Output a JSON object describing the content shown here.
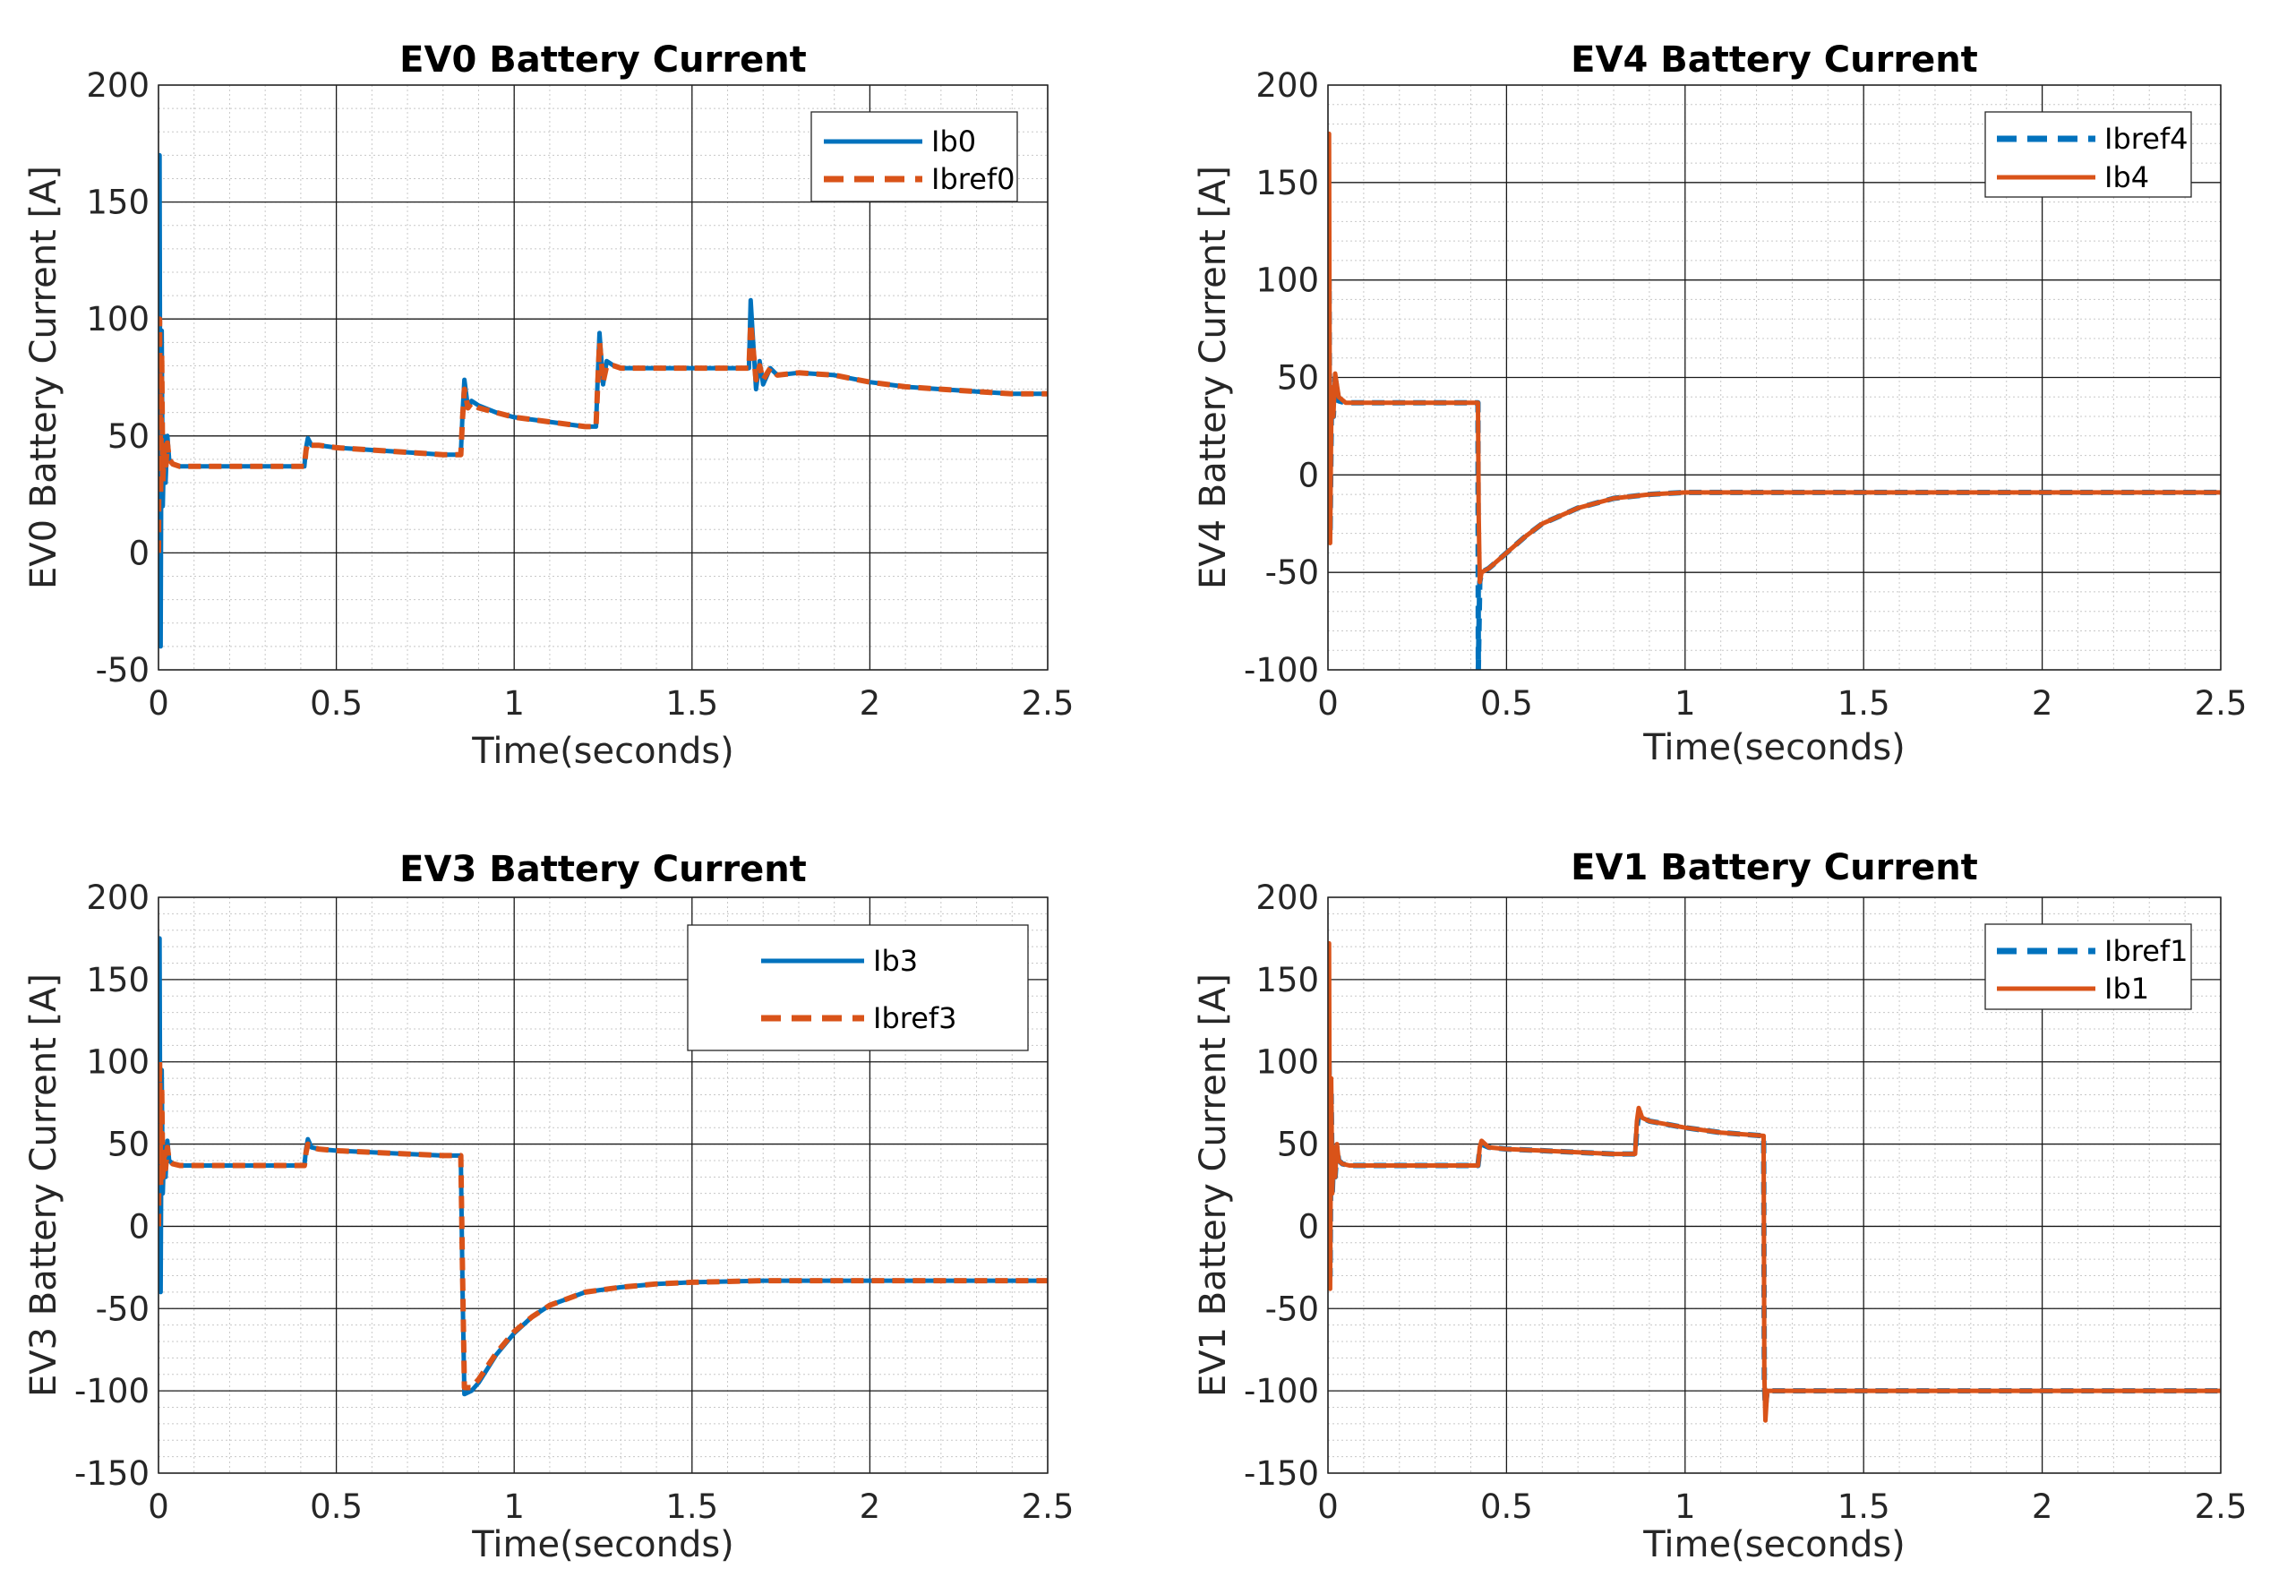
{
  "figure": {
    "colors": {
      "blue": "#0072BD",
      "orange": "#D95319",
      "grid_major": "#1a1a1a",
      "grid_minor": "#c8c8c8"
    }
  },
  "chart_data": [
    {
      "id": "ev0",
      "type": "line",
      "title": "EV0 Battery Current",
      "xlabel": "Time(seconds)",
      "ylabel": "EV0 Battery Current [A]",
      "xlim": [
        0,
        2.5
      ],
      "ylim": [
        -50,
        200
      ],
      "xticks": [
        0,
        0.5,
        1,
        1.5,
        2,
        2.5
      ],
      "yticks": [
        -50,
        0,
        50,
        100,
        150,
        200
      ],
      "xtick_labels": [
        "0",
        "0.5",
        "1",
        "1.5",
        "2",
        "2.5"
      ],
      "ytick_labels": [
        "-50",
        "0",
        "50",
        "100",
        "150",
        "200"
      ],
      "legend": {
        "position": "top-right",
        "entries": [
          "Ib0",
          "Ibref0"
        ]
      },
      "series": [
        {
          "name": "Ib0",
          "color": "#0072BD",
          "style": "solid",
          "x": [
            0,
            0.003,
            0.006,
            0.009,
            0.012,
            0.016,
            0.02,
            0.025,
            0.03,
            0.04,
            0.06,
            0.1,
            0.2,
            0.3,
            0.41,
            0.415,
            0.42,
            0.43,
            0.45,
            0.5,
            0.6,
            0.7,
            0.8,
            0.85,
            0.855,
            0.86,
            0.87,
            0.88,
            0.9,
            0.95,
            1.0,
            1.1,
            1.2,
            1.23,
            1.235,
            1.24,
            1.25,
            1.26,
            1.28,
            1.3,
            1.4,
            1.5,
            1.6,
            1.66,
            1.665,
            1.67,
            1.68,
            1.69,
            1.7,
            1.72,
            1.74,
            1.8,
            1.9,
            2.0,
            2.1,
            2.2,
            2.3,
            2.4,
            2.5
          ],
          "y": [
            0,
            170,
            -40,
            95,
            20,
            50,
            30,
            50,
            40,
            38,
            37,
            37,
            37,
            37,
            37,
            45,
            49,
            46,
            46,
            45,
            44,
            43,
            42,
            42,
            60,
            74,
            62,
            65,
            63,
            60,
            58,
            56,
            54,
            54,
            75,
            94,
            72,
            82,
            80,
            79,
            79,
            79,
            79,
            79,
            108,
            95,
            70,
            82,
            72,
            79,
            76,
            77,
            76,
            73,
            71,
            70,
            69,
            68,
            68
          ]
        },
        {
          "name": "Ibref0",
          "color": "#D95319",
          "style": "dashed",
          "x": [
            0,
            0.003,
            0.006,
            0.009,
            0.012,
            0.016,
            0.02,
            0.025,
            0.03,
            0.04,
            0.06,
            0.1,
            0.2,
            0.3,
            0.41,
            0.415,
            0.42,
            0.43,
            0.45,
            0.5,
            0.6,
            0.7,
            0.8,
            0.85,
            0.855,
            0.86,
            0.87,
            0.88,
            0.9,
            0.95,
            1.0,
            1.1,
            1.2,
            1.23,
            1.235,
            1.24,
            1.25,
            1.26,
            1.28,
            1.3,
            1.4,
            1.5,
            1.6,
            1.66,
            1.665,
            1.67,
            1.68,
            1.69,
            1.7,
            1.72,
            1.74,
            1.8,
            1.9,
            2.0,
            2.1,
            2.2,
            2.3,
            2.4,
            2.5
          ],
          "y": [
            0,
            100,
            25,
            85,
            30,
            45,
            35,
            47,
            40,
            38,
            37,
            37,
            37,
            37,
            37,
            44,
            47,
            46,
            46,
            45,
            44,
            43,
            42,
            42,
            58,
            70,
            62,
            64,
            62,
            60,
            58,
            56,
            54,
            54,
            72,
            90,
            73,
            80,
            80,
            79,
            79,
            79,
            79,
            79,
            98,
            90,
            74,
            80,
            74,
            79,
            76,
            77,
            76,
            73,
            71,
            70,
            69,
            68,
            68
          ]
        }
      ]
    },
    {
      "id": "ev4",
      "type": "line",
      "title": "EV4 Battery Current",
      "xlabel": "Time(seconds)",
      "ylabel": "EV4 Battery Current [A]",
      "xlim": [
        0,
        2.5
      ],
      "ylim": [
        -100,
        200
      ],
      "xticks": [
        0,
        0.5,
        1,
        1.5,
        2,
        2.5
      ],
      "yticks": [
        -100,
        -50,
        0,
        50,
        100,
        150,
        200
      ],
      "xtick_labels": [
        "0",
        "0.5",
        "1",
        "1.5",
        "2",
        "2.5"
      ],
      "ytick_labels": [
        "-100",
        "-50",
        "0",
        "50",
        "100",
        "150",
        "200"
      ],
      "legend": {
        "position": "top-right",
        "entries": [
          "Ibref4",
          "Ib4"
        ]
      },
      "series": [
        {
          "name": "Ibref4",
          "color": "#0072BD",
          "style": "dashed",
          "x": [
            0,
            0.003,
            0.006,
            0.01,
            0.015,
            0.02,
            0.03,
            0.05,
            0.1,
            0.2,
            0.3,
            0.42,
            0.421,
            0.425,
            0.43,
            0.45,
            0.5,
            0.55,
            0.6,
            0.7,
            0.8,
            0.9,
            1.0,
            1.2,
            1.5,
            2.0,
            2.5
          ],
          "y": [
            0,
            100,
            -30,
            40,
            30,
            50,
            38,
            37,
            37,
            37,
            37,
            37,
            -100,
            -55,
            -50,
            -48,
            -40,
            -32,
            -25,
            -17,
            -12,
            -10,
            -9,
            -9,
            -9,
            -9,
            -9
          ]
        },
        {
          "name": "Ib4",
          "color": "#D95319",
          "style": "solid",
          "x": [
            0,
            0.003,
            0.006,
            0.01,
            0.015,
            0.02,
            0.03,
            0.05,
            0.1,
            0.2,
            0.3,
            0.42,
            0.422,
            0.425,
            0.43,
            0.45,
            0.5,
            0.55,
            0.6,
            0.7,
            0.8,
            0.9,
            1.0,
            1.2,
            1.5,
            2.0,
            2.5
          ],
          "y": [
            0,
            175,
            -35,
            45,
            30,
            52,
            40,
            37,
            37,
            37,
            37,
            37,
            -20,
            -55,
            -50,
            -48,
            -40,
            -32,
            -25,
            -17,
            -12,
            -10,
            -9,
            -9,
            -9,
            -9,
            -9
          ]
        }
      ]
    },
    {
      "id": "ev3",
      "type": "line",
      "title": "EV3 Battery Current",
      "xlabel": "Time(seconds)",
      "ylabel": "EV3 Battery Current [A]",
      "xlim": [
        0,
        2.5
      ],
      "ylim": [
        -150,
        200
      ],
      "xticks": [
        0,
        0.5,
        1,
        1.5,
        2,
        2.5
      ],
      "yticks": [
        -150,
        -100,
        -50,
        0,
        50,
        100,
        150,
        200
      ],
      "xtick_labels": [
        "0",
        "0.5",
        "1",
        "1.5",
        "2",
        "2.5"
      ],
      "ytick_labels": [
        "-150",
        "-100",
        "-50",
        "0",
        "50",
        "100",
        "150",
        "200"
      ],
      "legend": {
        "position": "top-right",
        "entries": [
          "Ib3",
          "Ibref3"
        ]
      },
      "series": [
        {
          "name": "Ib3",
          "color": "#0072BD",
          "style": "solid",
          "x": [
            0,
            0.003,
            0.006,
            0.009,
            0.012,
            0.016,
            0.02,
            0.025,
            0.03,
            0.04,
            0.06,
            0.1,
            0.2,
            0.3,
            0.41,
            0.415,
            0.42,
            0.43,
            0.45,
            0.5,
            0.6,
            0.7,
            0.8,
            0.85,
            0.855,
            0.86,
            0.88,
            0.9,
            0.95,
            1.0,
            1.05,
            1.1,
            1.2,
            1.3,
            1.4,
            1.5,
            1.7,
            2.0,
            2.5
          ],
          "y": [
            0,
            175,
            -40,
            95,
            20,
            50,
            30,
            52,
            40,
            38,
            37,
            37,
            37,
            37,
            37,
            47,
            53,
            48,
            47,
            46,
            45,
            44,
            43,
            43,
            -40,
            -102,
            -100,
            -95,
            -78,
            -65,
            -55,
            -48,
            -40,
            -37,
            -35,
            -34,
            -33,
            -33,
            -33
          ]
        },
        {
          "name": "Ibref3",
          "color": "#D95319",
          "style": "dashed",
          "x": [
            0,
            0.003,
            0.006,
            0.009,
            0.012,
            0.016,
            0.02,
            0.025,
            0.03,
            0.04,
            0.06,
            0.1,
            0.2,
            0.3,
            0.41,
            0.415,
            0.42,
            0.43,
            0.45,
            0.5,
            0.6,
            0.7,
            0.8,
            0.85,
            0.855,
            0.86,
            0.88,
            0.9,
            0.95,
            1.0,
            1.05,
            1.1,
            1.2,
            1.3,
            1.4,
            1.5,
            1.7,
            2.0,
            2.5
          ],
          "y": [
            0,
            100,
            25,
            85,
            30,
            45,
            35,
            48,
            40,
            38,
            37,
            37,
            37,
            37,
            37,
            45,
            50,
            48,
            47,
            46,
            45,
            44,
            43,
            43,
            -30,
            -98,
            -98,
            -93,
            -77,
            -64,
            -55,
            -48,
            -40,
            -37,
            -35,
            -34,
            -33,
            -33,
            -33
          ]
        }
      ]
    },
    {
      "id": "ev1",
      "type": "line",
      "title": "EV1 Battery Current",
      "xlabel": "Time(seconds)",
      "ylabel": "EV1 Battery Current [A]",
      "xlim": [
        0,
        2.5
      ],
      "ylim": [
        -150,
        200
      ],
      "xticks": [
        0,
        0.5,
        1,
        1.5,
        2,
        2.5
      ],
      "yticks": [
        -150,
        -100,
        -50,
        0,
        50,
        100,
        150,
        200
      ],
      "xtick_labels": [
        "0",
        "0.5",
        "1",
        "1.5",
        "2",
        "2.5"
      ],
      "ytick_labels": [
        "-150",
        "-100",
        "-50",
        "0",
        "50",
        "100",
        "150",
        "200"
      ],
      "legend": {
        "position": "top-right",
        "entries": [
          "Ibref1",
          "Ib1"
        ]
      },
      "series": [
        {
          "name": "Ibref1",
          "color": "#0072BD",
          "style": "dashed",
          "x": [
            0,
            0.003,
            0.006,
            0.009,
            0.012,
            0.016,
            0.02,
            0.025,
            0.03,
            0.04,
            0.06,
            0.1,
            0.2,
            0.3,
            0.42,
            0.425,
            0.43,
            0.45,
            0.5,
            0.6,
            0.7,
            0.8,
            0.86,
            0.865,
            0.87,
            0.88,
            0.9,
            1.0,
            1.1,
            1.22,
            1.222,
            1.225,
            1.23,
            1.3,
            1.5,
            2.0,
            2.5
          ],
          "y": [
            0,
            100,
            -30,
            80,
            20,
            45,
            30,
            48,
            40,
            38,
            37,
            37,
            37,
            37,
            37,
            47,
            50,
            48,
            47,
            46,
            45,
            44,
            44,
            60,
            68,
            66,
            64,
            60,
            57,
            55,
            -95,
            -110,
            -100,
            -100,
            -100,
            -100,
            -100
          ]
        },
        {
          "name": "Ib1",
          "color": "#D95319",
          "style": "solid",
          "x": [
            0,
            0.003,
            0.006,
            0.009,
            0.012,
            0.016,
            0.02,
            0.025,
            0.03,
            0.04,
            0.06,
            0.1,
            0.2,
            0.3,
            0.42,
            0.425,
            0.43,
            0.45,
            0.5,
            0.6,
            0.7,
            0.8,
            0.86,
            0.865,
            0.87,
            0.88,
            0.9,
            1.0,
            1.1,
            1.22,
            1.222,
            1.225,
            1.23,
            1.3,
            1.5,
            2.0,
            2.5
          ],
          "y": [
            0,
            172,
            -38,
            90,
            20,
            48,
            30,
            50,
            40,
            38,
            37,
            37,
            37,
            37,
            37,
            48,
            52,
            48,
            47,
            46,
            45,
            44,
            44,
            64,
            72,
            66,
            64,
            60,
            57,
            55,
            -90,
            -118,
            -100,
            -100,
            -100,
            -100,
            -100
          ]
        }
      ]
    }
  ]
}
